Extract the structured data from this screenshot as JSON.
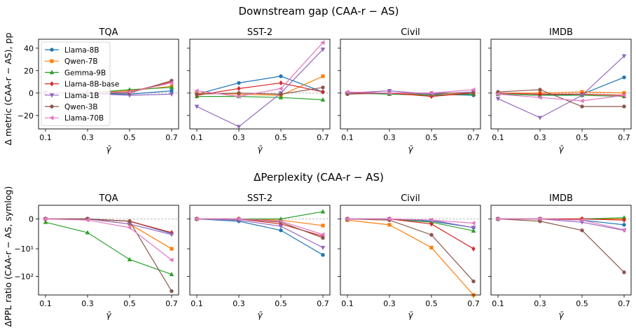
{
  "figure": {
    "top_suptitle": "Downstream gap (CAA-r − AS)",
    "bottom_suptitle": "ΔPerplexity (CAA-r − AS)",
    "top_ylabel": "Δ metric (CAA-r − AS), pp",
    "bottom_ylabel": "ΔPPL ratio (CAA-r − AS, symlog)"
  },
  "colors": {
    "Llama-8B": "#1f77b4",
    "Qwen-7B": "#ff7f0e",
    "Gemma-9B": "#2ca02c",
    "Llama-8B-base": "#d62728",
    "Llama-1B": "#9467bd",
    "Qwen-3B": "#8c564b",
    "Llama-70B": "#e377c2"
  },
  "legend": {
    "placement": "upper-left of first panel",
    "entries": [
      "Llama-8B",
      "Qwen-7B",
      "Gemma-9B",
      "Llama-8B-base",
      "Llama-1B",
      "Qwen-3B",
      "Llama-70B"
    ]
  },
  "chart_data": [
    {
      "type": "line",
      "title": "TQA",
      "xlabel": "γ̄",
      "ylabel": "Δ metric (CAA-r − AS), pp",
      "ylim": [
        -32,
        48
      ],
      "yscale": "linear",
      "xticks": [
        "0.1",
        "0.3",
        "0.5",
        "0.7"
      ],
      "yticks": [
        "40",
        "20",
        "0",
        "−20"
      ],
      "x": [
        0.1,
        0.3,
        0.5,
        0.7
      ],
      "series": [
        {
          "name": "Llama-8B",
          "values": [
            0,
            -0.5,
            -1,
            2
          ]
        },
        {
          "name": "Qwen-7B",
          "values": [
            0,
            0.5,
            2,
            6
          ]
        },
        {
          "name": "Gemma-9B",
          "values": [
            0,
            0,
            3,
            5
          ]
        },
        {
          "name": "Llama-8B-base",
          "values": [
            0,
            0,
            1,
            10
          ]
        },
        {
          "name": "Llama-1B",
          "values": [
            0,
            -0.5,
            -2,
            -1
          ]
        },
        {
          "name": "Qwen-3B",
          "values": [
            0,
            0,
            0,
            11
          ]
        },
        {
          "name": "Llama-70B",
          "values": [
            0,
            0,
            1,
            9
          ]
        }
      ]
    },
    {
      "type": "line",
      "title": "SST-2",
      "xlabel": "γ̄",
      "ylim": [
        -32,
        48
      ],
      "yscale": "linear",
      "xticks": [
        "0.1",
        "0.3",
        "0.5",
        "0.7"
      ],
      "x": [
        0.1,
        0.3,
        0.5,
        0.7
      ],
      "series": [
        {
          "name": "Llama-8B",
          "values": [
            -1,
            9,
            15,
            1
          ]
        },
        {
          "name": "Qwen-7B",
          "values": [
            0,
            -1,
            -2,
            15
          ]
        },
        {
          "name": "Gemma-9B",
          "values": [
            -3,
            -3,
            -4,
            -6
          ]
        },
        {
          "name": "Llama-8B-base",
          "values": [
            -2,
            4,
            9,
            1
          ]
        },
        {
          "name": "Llama-1B",
          "values": [
            -12,
            -30,
            0,
            39
          ]
        },
        {
          "name": "Qwen-3B",
          "values": [
            -1,
            0,
            -1,
            5
          ]
        },
        {
          "name": "Llama-70B",
          "values": [
            2,
            -3,
            4,
            45
          ]
        }
      ]
    },
    {
      "type": "line",
      "title": "Civil",
      "xlabel": "γ̄",
      "ylim": [
        -32,
        48
      ],
      "yscale": "linear",
      "xticks": [
        "0.1",
        "0.3",
        "0.5",
        "0.7"
      ],
      "x": [
        0.1,
        0.3,
        0.5,
        0.7
      ],
      "series": [
        {
          "name": "Llama-8B",
          "values": [
            0,
            0,
            -1,
            -2
          ]
        },
        {
          "name": "Qwen-7B",
          "values": [
            0,
            0,
            -2,
            0
          ]
        },
        {
          "name": "Gemma-9B",
          "values": [
            0,
            -1,
            -2,
            -1
          ]
        },
        {
          "name": "Llama-8B-base",
          "values": [
            0,
            0,
            -3,
            0
          ]
        },
        {
          "name": "Llama-1B",
          "values": [
            0,
            2,
            -1,
            1
          ]
        },
        {
          "name": "Qwen-3B",
          "values": [
            -1,
            0,
            0,
            0
          ]
        },
        {
          "name": "Llama-70B",
          "values": [
            1,
            0,
            0,
            3
          ]
        }
      ]
    },
    {
      "type": "line",
      "title": "IMDB",
      "xlabel": "γ̄",
      "ylim": [
        -32,
        48
      ],
      "yscale": "linear",
      "xticks": [
        "0.1",
        "0.3",
        "0.5",
        "0.7"
      ],
      "x": [
        0.1,
        0.3,
        0.5,
        0.7
      ],
      "series": [
        {
          "name": "Llama-8B",
          "values": [
            -1,
            -2,
            -1,
            14
          ]
        },
        {
          "name": "Qwen-7B",
          "values": [
            0,
            0,
            1,
            0
          ]
        },
        {
          "name": "Gemma-9B",
          "values": [
            -1,
            -2,
            -2,
            -3
          ]
        },
        {
          "name": "Llama-8B-base",
          "values": [
            0,
            -1,
            -1,
            -2
          ]
        },
        {
          "name": "Llama-1B",
          "values": [
            -5,
            -22,
            -2,
            33
          ]
        },
        {
          "name": "Qwen-3B",
          "values": [
            1,
            3,
            -12,
            -12
          ]
        },
        {
          "name": "Llama-70B",
          "values": [
            -1,
            -4,
            -7,
            -2
          ]
        }
      ]
    },
    {
      "type": "line",
      "title": "TQA",
      "xlabel": "γ̄",
      "ylabel": "ΔPPL ratio (CAA-r − AS, symlog)",
      "ylim": [
        -450,
        2
      ],
      "yscale": "symlog",
      "xticks": [
        "0.1",
        "0.3",
        "0.5",
        "0.7"
      ],
      "yticks": [
        "0",
        "−10¹",
        "−10²"
      ],
      "x": [
        0.1,
        0.3,
        0.5,
        0.7
      ],
      "series": [
        {
          "name": "Llama-8B",
          "values": [
            0,
            0,
            -0.2,
            -2.2
          ]
        },
        {
          "name": "Qwen-7B",
          "values": [
            0,
            0,
            -0.5,
            -10
          ]
        },
        {
          "name": "Gemma-9B",
          "values": [
            -0.3,
            -2,
            -25,
            -85
          ]
        },
        {
          "name": "Llama-8B-base",
          "values": [
            0,
            0,
            -0.2,
            -2
          ]
        },
        {
          "name": "Llama-1B",
          "values": [
            0,
            0,
            -0.5,
            -2.5
          ]
        },
        {
          "name": "Qwen-3B",
          "values": [
            0,
            0,
            -0.2,
            -330
          ]
        },
        {
          "name": "Llama-70B",
          "values": [
            0,
            -0.1,
            -1,
            -26
          ]
        }
      ]
    },
    {
      "type": "line",
      "title": "SST-2",
      "xlabel": "γ̄",
      "ylim": [
        -450,
        2
      ],
      "yscale": "symlog",
      "xticks": [
        "0.1",
        "0.3",
        "0.5",
        "0.7"
      ],
      "x": [
        0.1,
        0.3,
        0.5,
        0.7
      ],
      "series": [
        {
          "name": "Llama-8B",
          "values": [
            0,
            -0.2,
            -1.5,
            -17
          ]
        },
        {
          "name": "Qwen-7B",
          "values": [
            0,
            0,
            -0.1,
            -0.7
          ]
        },
        {
          "name": "Gemma-9B",
          "values": [
            0,
            0,
            0,
            0.8
          ]
        },
        {
          "name": "Llama-8B-base",
          "values": [
            0,
            0,
            -0.5,
            -3
          ]
        },
        {
          "name": "Llama-1B",
          "values": [
            0,
            -0.1,
            -0.8,
            -9
          ]
        },
        {
          "name": "Qwen-3B",
          "values": [
            0,
            0,
            -0.3,
            -3.6
          ]
        },
        {
          "name": "Llama-70B",
          "values": [
            0,
            0,
            -0.2,
            -2.5
          ]
        }
      ]
    },
    {
      "type": "line",
      "title": "Civil",
      "xlabel": "γ̄",
      "ylim": [
        -450,
        2
      ],
      "yscale": "symlog",
      "xticks": [
        "0.1",
        "0.3",
        "0.5",
        "0.7"
      ],
      "x": [
        0.1,
        0.3,
        0.5,
        0.7
      ],
      "series": [
        {
          "name": "Llama-8B",
          "values": [
            0,
            0,
            -0.2,
            -1
          ]
        },
        {
          "name": "Qwen-7B",
          "values": [
            -0.1,
            -0.6,
            -9,
            -450
          ]
        },
        {
          "name": "Gemma-9B",
          "values": [
            0,
            0,
            -0.3,
            -1.6
          ]
        },
        {
          "name": "Llama-8B-base",
          "values": [
            0,
            0,
            -0.5,
            -10
          ]
        },
        {
          "name": "Llama-1B",
          "values": [
            0,
            0,
            -0.1,
            -1
          ]
        },
        {
          "name": "Qwen-3B",
          "values": [
            0,
            -0.1,
            -2.6,
            -150
          ]
        },
        {
          "name": "Llama-70B",
          "values": [
            0,
            0,
            -0.1,
            -0.4
          ]
        }
      ]
    },
    {
      "type": "line",
      "title": "IMDB",
      "xlabel": "γ̄",
      "ylim": [
        -450,
        2
      ],
      "yscale": "symlog",
      "xticks": [
        "0.1",
        "0.3",
        "0.5",
        "0.7"
      ],
      "x": [
        0.1,
        0.3,
        0.5,
        0.7
      ],
      "series": [
        {
          "name": "Llama-8B",
          "values": [
            0,
            0,
            -0.1,
            -0.6
          ]
        },
        {
          "name": "Qwen-7B",
          "values": [
            0,
            0,
            0,
            0
          ]
        },
        {
          "name": "Gemma-9B",
          "values": [
            0,
            0,
            0,
            0.1
          ]
        },
        {
          "name": "Llama-8B-base",
          "values": [
            0,
            0,
            0,
            -0.1
          ]
        },
        {
          "name": "Llama-1B",
          "values": [
            0,
            0,
            -0.3,
            -1.5
          ]
        },
        {
          "name": "Qwen-3B",
          "values": [
            0,
            -0.2,
            -1.5,
            -72
          ]
        },
        {
          "name": "Llama-70B",
          "values": [
            0,
            0,
            -0.1,
            -1.4
          ]
        }
      ]
    }
  ]
}
